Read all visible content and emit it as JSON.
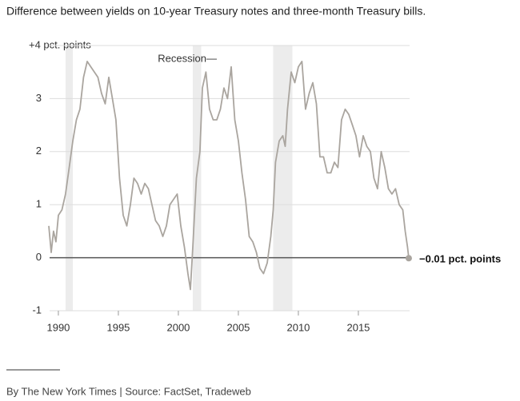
{
  "chart_data": {
    "type": "line",
    "title": "Difference between yields on 10-year Treasury notes and three-month Treasury bills.",
    "source": "By The New York Times | Source: FactSet, Tradeweb",
    "annotation": "Recession—",
    "color": "#aaa59f",
    "recessions": [
      [
        1990.6,
        1991.2
      ],
      [
        2001.2,
        2001.9
      ],
      [
        2007.9,
        2009.5
      ]
    ],
    "x": [
      1989.2,
      1989.4,
      1989.6,
      1989.8,
      1990.0,
      1990.3,
      1990.6,
      1990.9,
      1991.2,
      1991.5,
      1991.8,
      1992.1,
      1992.4,
      1992.7,
      1993.0,
      1993.3,
      1993.6,
      1993.9,
      1994.2,
      1994.5,
      1994.8,
      1995.1,
      1995.4,
      1995.7,
      1996.0,
      1996.3,
      1996.6,
      1996.9,
      1997.2,
      1997.5,
      1997.8,
      1998.1,
      1998.4,
      1998.7,
      1999.0,
      1999.3,
      1999.6,
      1999.9,
      2000.2,
      2000.5,
      2000.8,
      2001.0,
      2001.2,
      2001.5,
      2001.8,
      2002.0,
      2002.3,
      2002.6,
      2002.9,
      2003.2,
      2003.5,
      2003.8,
      2004.1,
      2004.4,
      2004.7,
      2005.0,
      2005.3,
      2005.6,
      2005.9,
      2006.2,
      2006.5,
      2006.8,
      2007.1,
      2007.4,
      2007.7,
      2007.9,
      2008.1,
      2008.4,
      2008.7,
      2008.9,
      2009.1,
      2009.4,
      2009.7,
      2010.0,
      2010.3,
      2010.6,
      2010.9,
      2011.2,
      2011.5,
      2011.8,
      2012.1,
      2012.4,
      2012.7,
      2013.0,
      2013.3,
      2013.6,
      2013.9,
      2014.2,
      2014.5,
      2014.8,
      2015.1,
      2015.4,
      2015.7,
      2016.0,
      2016.3,
      2016.6,
      2016.9,
      2017.2,
      2017.5,
      2017.8,
      2018.1,
      2018.4,
      2018.7,
      2018.9,
      2019.1,
      2019.2
    ],
    "values": [
      0.6,
      0.1,
      0.5,
      0.3,
      0.8,
      0.9,
      1.2,
      1.7,
      2.2,
      2.6,
      2.8,
      3.4,
      3.7,
      3.6,
      3.5,
      3.4,
      3.1,
      2.9,
      3.4,
      3.0,
      2.6,
      1.5,
      0.8,
      0.6,
      1.0,
      1.5,
      1.4,
      1.2,
      1.4,
      1.3,
      1.0,
      0.7,
      0.6,
      0.4,
      0.6,
      1.0,
      1.1,
      1.2,
      0.6,
      0.2,
      -0.3,
      -0.6,
      0.2,
      1.5,
      2.0,
      3.2,
      3.5,
      2.8,
      2.6,
      2.6,
      2.8,
      3.2,
      3.0,
      3.6,
      2.6,
      2.2,
      1.6,
      1.1,
      0.4,
      0.3,
      0.1,
      -0.2,
      -0.3,
      -0.1,
      0.4,
      0.9,
      1.8,
      2.2,
      2.3,
      2.1,
      2.8,
      3.5,
      3.3,
      3.6,
      3.7,
      2.8,
      3.1,
      3.3,
      2.9,
      1.9,
      1.9,
      1.6,
      1.6,
      1.8,
      1.7,
      2.6,
      2.8,
      2.7,
      2.5,
      2.3,
      1.9,
      2.3,
      2.1,
      2.0,
      1.5,
      1.3,
      2.0,
      1.7,
      1.3,
      1.2,
      1.3,
      1.0,
      0.9,
      0.5,
      0.2,
      -0.01
    ],
    "end_label": {
      "value": -0.01,
      "label": "−0.01 pct. points"
    },
    "xlim": [
      1989.27,
      2019.27
    ],
    "xticks": [
      1990,
      1995,
      2000,
      2005,
      2010,
      2015
    ],
    "ylim": [
      -1,
      4
    ],
    "yticks": [
      -1,
      0,
      1,
      2,
      3,
      {
        "value": 4,
        "label": "+4  pct. points"
      }
    ],
    "grid": true
  }
}
